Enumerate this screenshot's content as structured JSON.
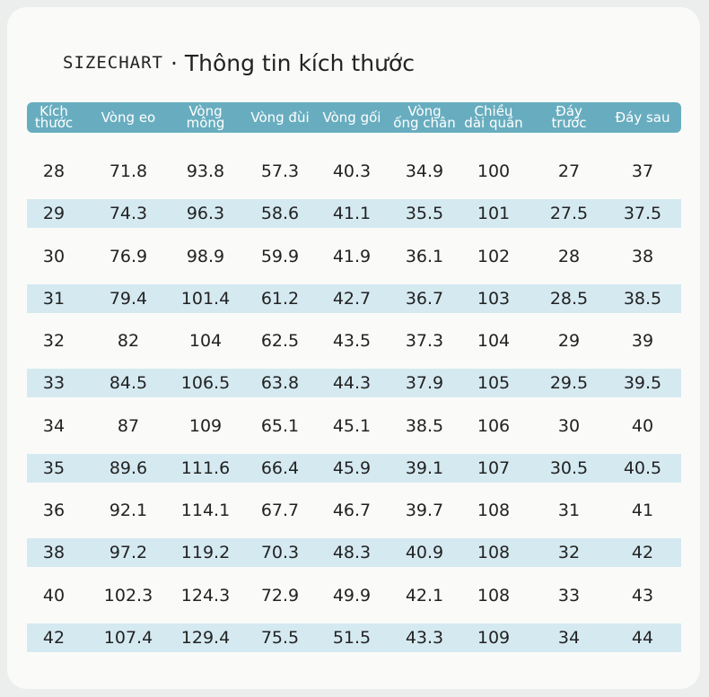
{
  "header": {
    "label": "SIZECHART",
    "title": "· Thông tin kích thước"
  },
  "table": {
    "headers": [
      [
        "Kích",
        "thước"
      ],
      [
        "Vòng eo"
      ],
      [
        "Vòng",
        "mông"
      ],
      [
        "Vòng đùi"
      ],
      [
        "Vòng gối"
      ],
      [
        "Vòng",
        "ống chân"
      ],
      [
        "Chiều",
        "dài quần"
      ],
      [
        "Đáy",
        "trước"
      ],
      [
        "Đáy sau"
      ]
    ],
    "rows": [
      [
        28,
        71.8,
        93.8,
        57.3,
        40.3,
        34.9,
        100,
        27,
        37
      ],
      [
        29,
        74.3,
        96.3,
        58.6,
        41.1,
        35.5,
        101,
        27.5,
        37.5
      ],
      [
        30,
        76.9,
        98.9,
        59.9,
        41.9,
        36.1,
        102,
        28,
        38
      ],
      [
        31,
        79.4,
        101.4,
        61.2,
        42.7,
        36.7,
        103,
        28.5,
        38.5
      ],
      [
        32,
        82,
        104,
        62.5,
        43.5,
        37.3,
        104,
        29,
        39
      ],
      [
        33,
        84.5,
        106.5,
        63.8,
        44.3,
        37.9,
        105,
        29.5,
        39.5
      ],
      [
        34,
        87,
        109,
        65.1,
        45.1,
        38.5,
        106,
        30,
        40
      ],
      [
        35,
        89.6,
        111.6,
        66.4,
        45.9,
        39.1,
        107,
        30.5,
        40.5
      ],
      [
        36,
        92.1,
        114.1,
        67.7,
        46.7,
        39.7,
        108,
        31,
        41
      ],
      [
        38,
        97.2,
        119.2,
        70.3,
        48.3,
        40.9,
        108,
        32,
        42
      ],
      [
        40,
        102.3,
        124.3,
        72.9,
        49.9,
        42.1,
        108,
        33,
        43
      ],
      [
        42,
        107.4,
        129.4,
        75.5,
        51.5,
        43.3,
        109,
        34,
        44
      ]
    ]
  }
}
